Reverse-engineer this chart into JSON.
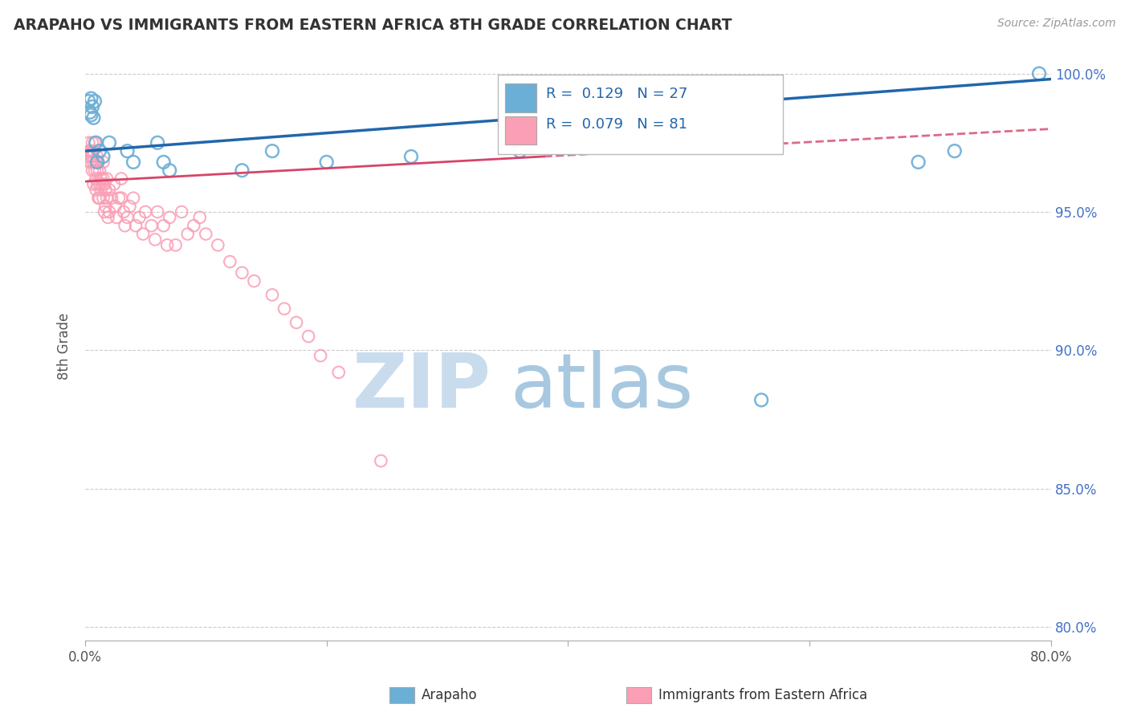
{
  "title": "ARAPAHO VS IMMIGRANTS FROM EASTERN AFRICA 8TH GRADE CORRELATION CHART",
  "source": "Source: ZipAtlas.com",
  "ylabel": "8th Grade",
  "legend_label1": "Arapaho",
  "legend_label2": "Immigrants from Eastern Africa",
  "R1": 0.129,
  "N1": 27,
  "R2": 0.079,
  "N2": 81,
  "xlim": [
    0.0,
    0.8
  ],
  "ylim": [
    0.795,
    1.008
  ],
  "color_blue": "#6BAED6",
  "color_pink": "#FA9FB5",
  "color_blue_line": "#2166AC",
  "color_pink_line": "#D6446A",
  "watermark_zip_color": "#C8DCEE",
  "watermark_atlas_color": "#A8C8E0",
  "blue_x": [
    0.003,
    0.004,
    0.005,
    0.005,
    0.006,
    0.007,
    0.008,
    0.009,
    0.01,
    0.012,
    0.015,
    0.02,
    0.035,
    0.04,
    0.06,
    0.065,
    0.07,
    0.13,
    0.155,
    0.2,
    0.27,
    0.35,
    0.36,
    0.56,
    0.69,
    0.72,
    0.79
  ],
  "blue_y": [
    0.99,
    0.986,
    0.991,
    0.985,
    0.988,
    0.984,
    0.99,
    0.975,
    0.968,
    0.972,
    0.97,
    0.975,
    0.972,
    0.968,
    0.975,
    0.968,
    0.965,
    0.965,
    0.972,
    0.968,
    0.97,
    0.975,
    0.972,
    0.882,
    0.968,
    0.972,
    1.0
  ],
  "pink_x": [
    0.002,
    0.003,
    0.003,
    0.004,
    0.004,
    0.005,
    0.005,
    0.005,
    0.006,
    0.006,
    0.006,
    0.007,
    0.007,
    0.007,
    0.008,
    0.008,
    0.009,
    0.009,
    0.009,
    0.01,
    0.01,
    0.01,
    0.011,
    0.011,
    0.012,
    0.012,
    0.012,
    0.013,
    0.013,
    0.014,
    0.015,
    0.015,
    0.015,
    0.016,
    0.016,
    0.017,
    0.017,
    0.018,
    0.018,
    0.019,
    0.02,
    0.02,
    0.022,
    0.024,
    0.025,
    0.026,
    0.028,
    0.03,
    0.03,
    0.032,
    0.033,
    0.035,
    0.037,
    0.04,
    0.042,
    0.045,
    0.048,
    0.05,
    0.055,
    0.058,
    0.06,
    0.065,
    0.068,
    0.07,
    0.075,
    0.08,
    0.085,
    0.09,
    0.095,
    0.1,
    0.11,
    0.12,
    0.13,
    0.14,
    0.155,
    0.165,
    0.175,
    0.185,
    0.195,
    0.21,
    0.245
  ],
  "pink_y": [
    0.97,
    0.975,
    0.972,
    0.968,
    0.972,
    0.97,
    0.968,
    0.972,
    0.975,
    0.97,
    0.965,
    0.972,
    0.968,
    0.96,
    0.975,
    0.965,
    0.968,
    0.962,
    0.958,
    0.97,
    0.965,
    0.96,
    0.968,
    0.955,
    0.965,
    0.96,
    0.955,
    0.962,
    0.958,
    0.96,
    0.968,
    0.962,
    0.955,
    0.96,
    0.95,
    0.958,
    0.952,
    0.962,
    0.955,
    0.948,
    0.958,
    0.95,
    0.955,
    0.96,
    0.952,
    0.948,
    0.955,
    0.962,
    0.955,
    0.95,
    0.945,
    0.948,
    0.952,
    0.955,
    0.945,
    0.948,
    0.942,
    0.95,
    0.945,
    0.94,
    0.95,
    0.945,
    0.938,
    0.948,
    0.938,
    0.95,
    0.942,
    0.945,
    0.948,
    0.942,
    0.938,
    0.932,
    0.928,
    0.925,
    0.92,
    0.915,
    0.91,
    0.905,
    0.898,
    0.892,
    0.86
  ],
  "trend_blue_x0": 0.0,
  "trend_blue_x1": 0.8,
  "trend_blue_y0": 0.972,
  "trend_blue_y1": 0.998,
  "trend_pink_solid_x0": 0.0,
  "trend_pink_solid_x1": 0.38,
  "trend_pink_dashed_x0": 0.38,
  "trend_pink_dashed_x1": 0.8,
  "trend_pink_y0": 0.961,
  "trend_pink_y1": 0.98
}
